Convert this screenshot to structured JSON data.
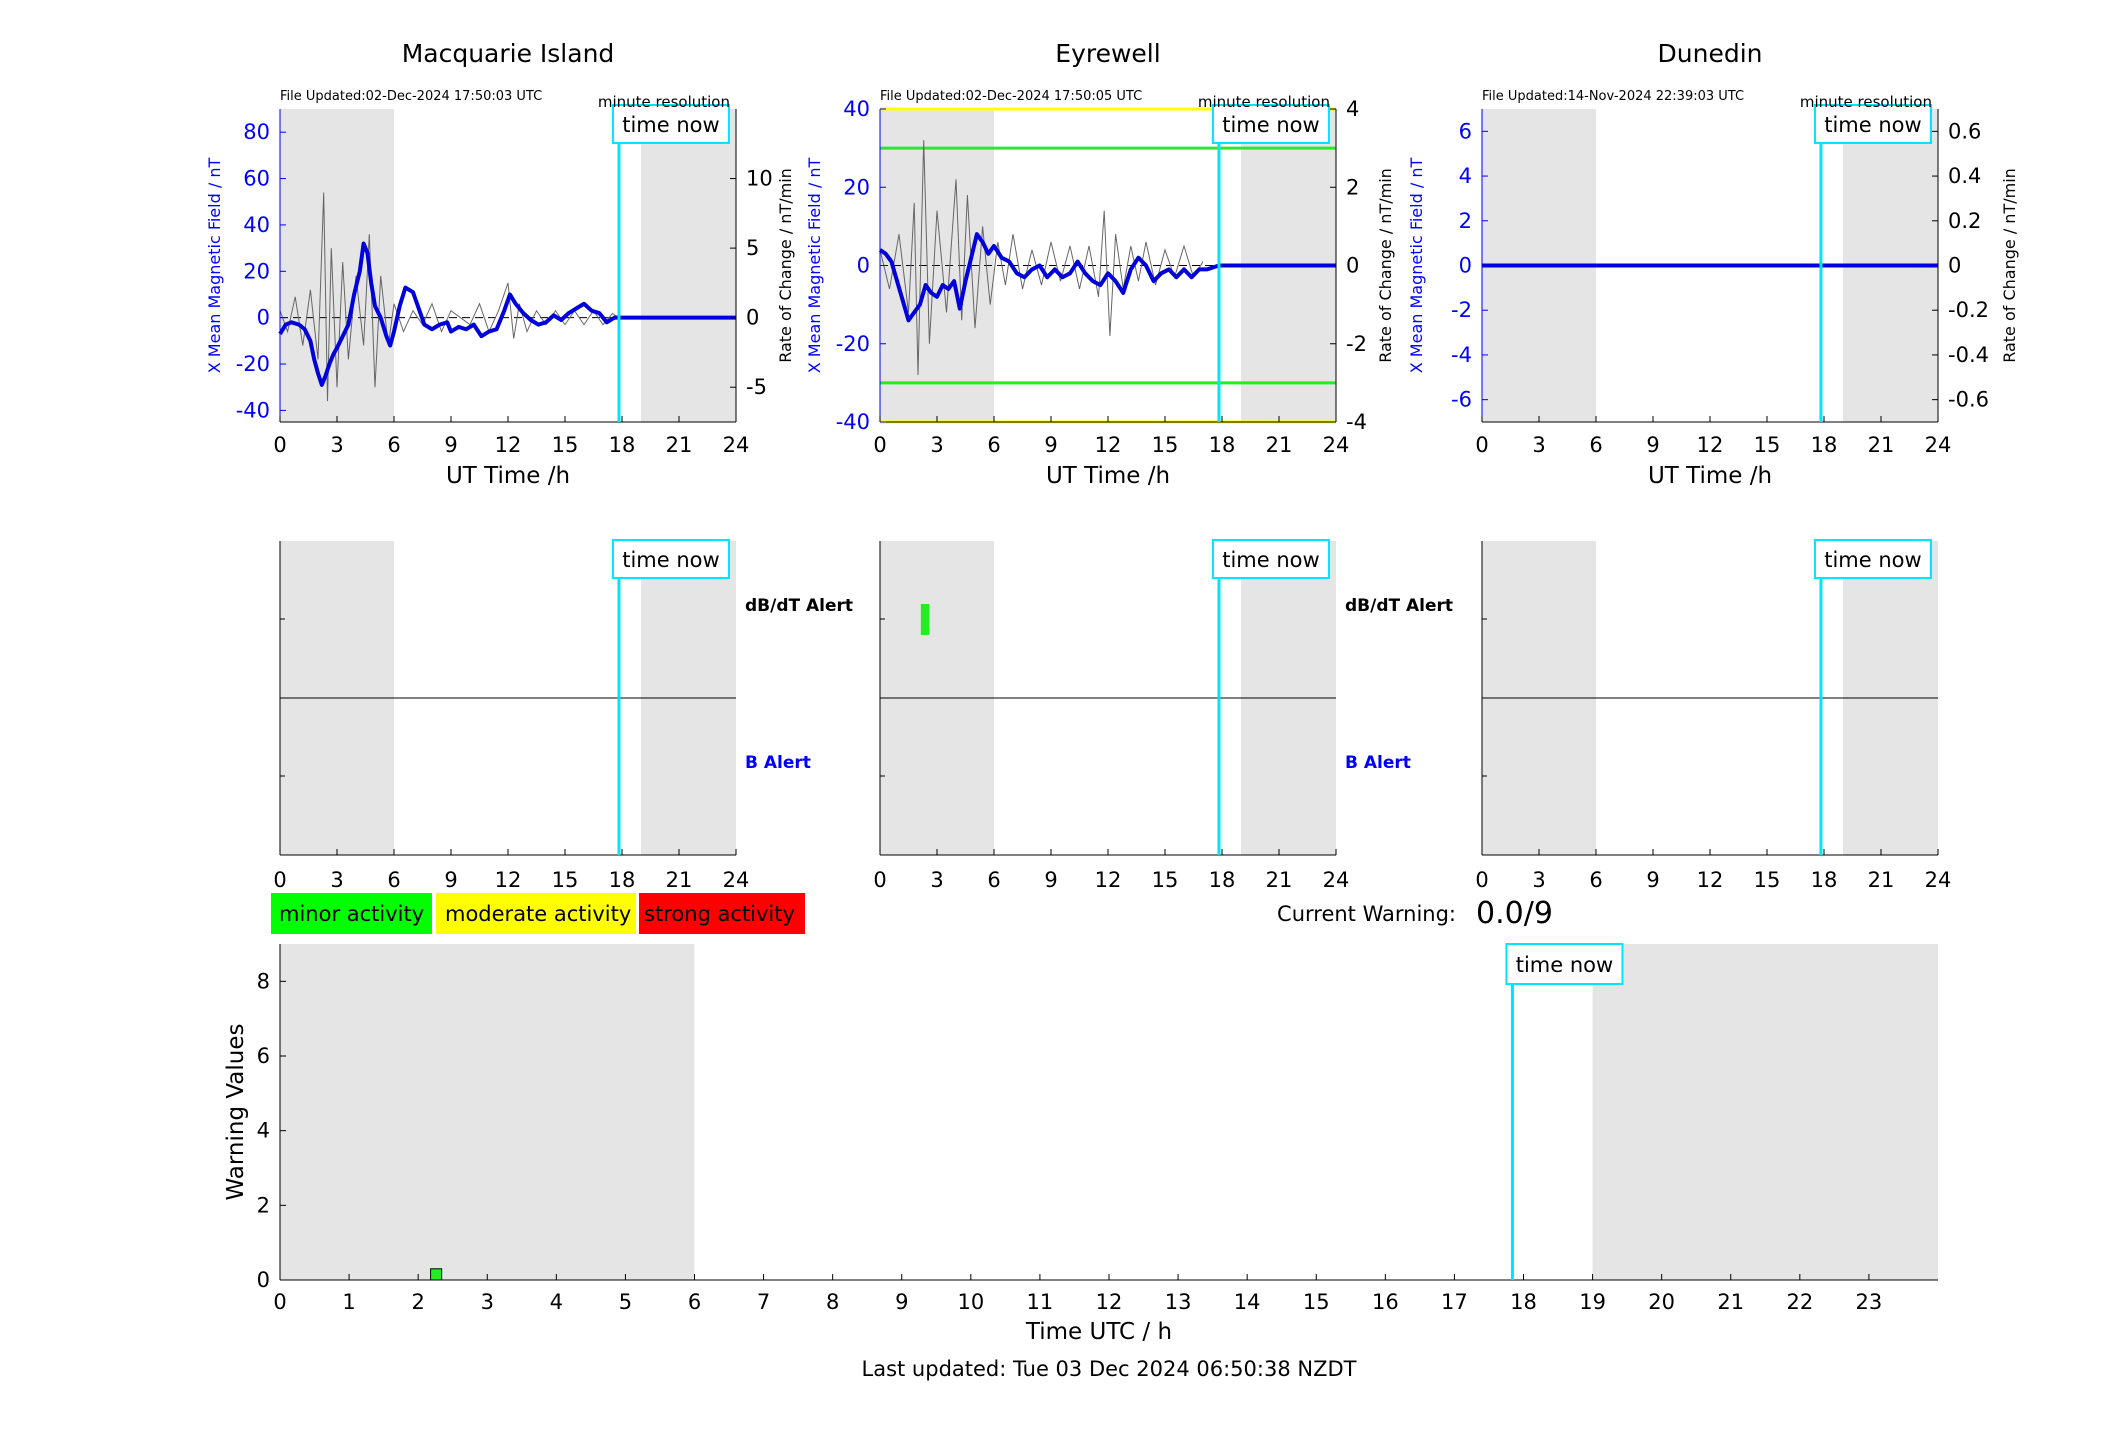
{
  "chart_data": [
    {
      "type": "line",
      "title": "Macquarie Island",
      "file_updated": "File Updated:02-Dec-2024 17:50:03 UTC",
      "resolution_label": "minute resolution",
      "time_now_label": "time now",
      "time_now": 17.84,
      "xlabel": "UT Time /h",
      "ylabel_left": "X Mean Magnetic Field / nT",
      "ylabel_right": "Rate of Change / nT/min",
      "xlim": [
        0,
        24
      ],
      "xticks": [
        0,
        3,
        6,
        9,
        12,
        15,
        18,
        21,
        24
      ],
      "ylim_left": [
        -45,
        90
      ],
      "yticks_left": [
        -40,
        -20,
        0,
        20,
        40,
        60,
        80
      ],
      "ylim_right": [
        -7.5,
        15
      ],
      "yticks_right": [
        -5,
        0,
        5,
        10
      ],
      "night_shading": [
        [
          0,
          6
        ],
        [
          19,
          24
        ]
      ],
      "series": [
        {
          "color": "#0000dd",
          "x": [
            0,
            0.3,
            0.6,
            1,
            1.3,
            1.6,
            1.8,
            2,
            2.2,
            2.4,
            2.6,
            2.8,
            3,
            3.3,
            3.6,
            3.9,
            4.2,
            4.4,
            4.6,
            4.8,
            5,
            5.3,
            5.6,
            5.8,
            6,
            6.3,
            6.6,
            7,
            7.3,
            7.6,
            8,
            8.4,
            8.8,
            9,
            9.4,
            9.8,
            10.2,
            10.6,
            11,
            11.4,
            11.8,
            12.1,
            12.4,
            12.8,
            13.2,
            13.6,
            14,
            14.4,
            14.8,
            15.2,
            15.6,
            16,
            16.4,
            16.8,
            17.2,
            17.6,
            17.84,
            24
          ],
          "y": [
            -7,
            -3,
            -2,
            -3,
            -5,
            -10,
            -18,
            -24,
            -29,
            -25,
            -20,
            -16,
            -13,
            -8,
            -3,
            10,
            20,
            32,
            28,
            15,
            5,
            0,
            -8,
            -12,
            -6,
            5,
            13,
            11,
            4,
            -3,
            -5,
            -3,
            -2,
            -6,
            -4,
            -5,
            -3,
            -8,
            -6,
            -5,
            3,
            10,
            6,
            2,
            -1,
            -3,
            -2,
            1,
            -1,
            2,
            4,
            6,
            3,
            2,
            -2,
            0,
            0,
            0
          ]
        },
        {
          "color": "#666666",
          "x": [
            0,
            0.4,
            0.8,
            1.2,
            1.6,
            2,
            2.3,
            2.5,
            2.7,
            3,
            3.3,
            3.6,
            4,
            4.4,
            4.7,
            5,
            5.3,
            5.7,
            6,
            6.5,
            7,
            7.5,
            8,
            8.5,
            9,
            9.5,
            10,
            10.5,
            11,
            11.5,
            12,
            12.3,
            12.6,
            13,
            13.5,
            14,
            14.5,
            15,
            15.5,
            16,
            16.5,
            17,
            17.5,
            17.84
          ],
          "y": [
            0.5,
            -1,
            1.5,
            -2,
            2,
            -3,
            9,
            -6,
            5,
            -5,
            4,
            -3,
            3,
            -2,
            6,
            -5,
            3,
            -2,
            1,
            -1,
            0.5,
            -0.5,
            1,
            -1,
            0.5,
            0,
            -0.5,
            1,
            -1,
            0.5,
            2.5,
            -1.5,
            1,
            -1,
            0.5,
            -0.5,
            0.5,
            -0.5,
            0.5,
            -0.5,
            0.5,
            -0.5,
            0.3,
            0
          ]
        }
      ]
    },
    {
      "type": "line",
      "title": "Eyrewell",
      "file_updated": "File Updated:02-Dec-2024 17:50:05 UTC",
      "resolution_label": "minute resolution",
      "time_now_label": "time now",
      "time_now": 17.84,
      "xlabel": "UT Time /h",
      "ylabel_left": "X Mean Magnetic Field / nT",
      "ylabel_right": "Rate of Change / nT/min",
      "xlim": [
        0,
        24
      ],
      "xticks": [
        0,
        3,
        6,
        9,
        12,
        15,
        18,
        21,
        24
      ],
      "ylim_left": [
        -40,
        40
      ],
      "yticks_left": [
        -40,
        -20,
        0,
        20,
        40
      ],
      "ylim_right": [
        -4,
        4
      ],
      "yticks_right": [
        -4,
        -2,
        0,
        2,
        4
      ],
      "night_shading": [
        [
          0,
          6
        ],
        [
          19,
          24
        ]
      ],
      "threshold_lines": [
        {
          "value": 30,
          "color": "#22ee22"
        },
        {
          "value": -30,
          "color": "#22ee22"
        },
        {
          "value": 40,
          "color": "#ffff00"
        },
        {
          "value": -40,
          "color": "#ffff00"
        }
      ],
      "series": [
        {
          "color": "#0000dd",
          "x": [
            0,
            0.3,
            0.6,
            0.9,
            1.2,
            1.5,
            1.8,
            2.1,
            2.4,
            2.7,
            3,
            3.3,
            3.6,
            3.9,
            4.2,
            4.5,
            4.8,
            5.1,
            5.4,
            5.7,
            6,
            6.4,
            6.8,
            7.2,
            7.6,
            8,
            8.4,
            8.8,
            9.2,
            9.6,
            10,
            10.4,
            10.8,
            11.2,
            11.6,
            12,
            12.4,
            12.8,
            13.2,
            13.6,
            14,
            14.4,
            14.8,
            15.2,
            15.6,
            16,
            16.4,
            16.8,
            17.2,
            17.84,
            24
          ],
          "y": [
            4,
            3,
            1,
            -4,
            -9,
            -14,
            -12,
            -10,
            -5,
            -7,
            -8,
            -5,
            -6,
            -4,
            -11,
            -4,
            2,
            8,
            6,
            3,
            5,
            2,
            1,
            -2,
            -3,
            -1,
            0,
            -3,
            -1,
            -3,
            -2,
            1,
            -2,
            -4,
            -5,
            -2,
            -4,
            -7,
            -1,
            2,
            0,
            -4,
            -2,
            -1,
            -3,
            -1,
            -3,
            -1,
            -1,
            0,
            0
          ]
        },
        {
          "color": "#666666",
          "x": [
            0,
            0.5,
            1,
            1.5,
            1.8,
            2,
            2.3,
            2.6,
            3,
            3.5,
            4,
            4.3,
            4.6,
            5,
            5.4,
            5.8,
            6.2,
            6.6,
            7,
            7.5,
            8,
            8.5,
            9,
            9.5,
            10,
            10.5,
            11,
            11.5,
            11.8,
            12.1,
            12.4,
            12.8,
            13.2,
            13.6,
            14,
            14.5,
            15,
            15.5,
            16,
            16.5,
            17
          ],
          "y": [
            0.4,
            -0.6,
            0.8,
            -1.2,
            1.6,
            -2.8,
            3.2,
            -2,
            1.4,
            -1.2,
            2.2,
            -1.4,
            1.8,
            -1.6,
            1,
            -1,
            0.6,
            -0.5,
            0.8,
            -0.6,
            0.4,
            -0.5,
            0.6,
            -0.4,
            0.5,
            -0.6,
            0.5,
            -0.8,
            1.4,
            -1.8,
            0.8,
            -0.6,
            0.5,
            -0.4,
            0.6,
            -0.5,
            0.4,
            -0.3,
            0.5,
            -0.3,
            0.1
          ]
        }
      ]
    },
    {
      "type": "line",
      "title": "Dunedin",
      "file_updated": "File Updated:14-Nov-2024 22:39:03 UTC",
      "resolution_label": "minute resolution",
      "time_now_label": "time now",
      "time_now": 17.84,
      "xlabel": "UT Time /h",
      "ylabel_left": "X Mean Magnetic Field / nT",
      "ylabel_right": "Rate of Change / nT/min",
      "xlim": [
        0,
        24
      ],
      "xticks": [
        0,
        3,
        6,
        9,
        12,
        15,
        18,
        21,
        24
      ],
      "ylim_left": [
        -7,
        7
      ],
      "yticks_left": [
        -6,
        -4,
        -2,
        0,
        2,
        4,
        6
      ],
      "ylim_right": [
        -0.7,
        0.7
      ],
      "yticks_right": [
        -0.6,
        -0.4,
        -0.2,
        0,
        0.2,
        0.4,
        0.6
      ],
      "night_shading": [
        [
          0,
          6
        ],
        [
          19,
          24
        ]
      ],
      "series": [
        {
          "color": "#0000dd",
          "x": [
            0,
            24
          ],
          "y": [
            0,
            0
          ]
        }
      ]
    },
    {
      "type": "bar",
      "title": "",
      "panel": "alerts",
      "station": "Macquarie Island",
      "label_top": "dB/dT Alert",
      "label_bottom": "B Alert",
      "time_now_label": "time now",
      "time_now": 17.84,
      "xlim": [
        0,
        24
      ],
      "xticks": [
        0,
        3,
        6,
        9,
        12,
        15,
        18,
        21,
        24
      ],
      "night_shading": [
        [
          0,
          6
        ],
        [
          19,
          24
        ]
      ],
      "alerts": []
    },
    {
      "type": "bar",
      "title": "",
      "panel": "alerts",
      "station": "Eyrewell",
      "label_top": "dB/dT Alert",
      "label_bottom": "B Alert",
      "time_now_label": "time now",
      "time_now": 17.84,
      "xlim": [
        0,
        24
      ],
      "xticks": [
        0,
        3,
        6,
        9,
        12,
        15,
        18,
        21,
        24
      ],
      "night_shading": [
        [
          0,
          6
        ],
        [
          19,
          24
        ]
      ],
      "alerts": [
        {
          "row": "dB/dT Alert",
          "start": 2.15,
          "end": 2.6,
          "color": "#22ee22"
        }
      ]
    },
    {
      "type": "bar",
      "title": "",
      "panel": "alerts",
      "station": "Dunedin",
      "label_top": "dB/dT Alert",
      "label_bottom": "B Alert",
      "time_now_label": "time now",
      "time_now": 17.84,
      "xlim": [
        0,
        24
      ],
      "xticks": [
        0,
        3,
        6,
        9,
        12,
        15,
        18,
        21,
        24
      ],
      "night_shading": [
        [
          0,
          6
        ],
        [
          19,
          24
        ]
      ],
      "alerts": []
    },
    {
      "type": "bar",
      "title": "",
      "xlabel": "Time UTC / h",
      "ylabel": "Warning Values",
      "xlim": [
        0,
        24
      ],
      "xticks": [
        0,
        1,
        2,
        3,
        4,
        5,
        6,
        7,
        8,
        9,
        10,
        11,
        12,
        13,
        14,
        15,
        16,
        17,
        18,
        19,
        20,
        21,
        22,
        23
      ],
      "ylim": [
        0,
        9
      ],
      "yticks": [
        0,
        2,
        4,
        6,
        8
      ],
      "time_now_label": "time now",
      "time_now": 17.84,
      "night_shading": [
        [
          0,
          6
        ],
        [
          19,
          24
        ]
      ],
      "bars": [
        {
          "start": 2.18,
          "end": 2.34,
          "value": 0.3,
          "color": "#22ee22"
        }
      ]
    }
  ],
  "legend": {
    "minor": "minor activity",
    "moderate": "moderate activity",
    "strong": "strong activity",
    "minor_color": "#00ff00",
    "moderate_color": "#ffff00",
    "strong_color": "#ff0000"
  },
  "current_warning_label": "Current Warning:",
  "current_warning_value": "0.0/9",
  "last_updated": "Last updated: Tue 03 Dec 2024 06:50:38 NZDT"
}
